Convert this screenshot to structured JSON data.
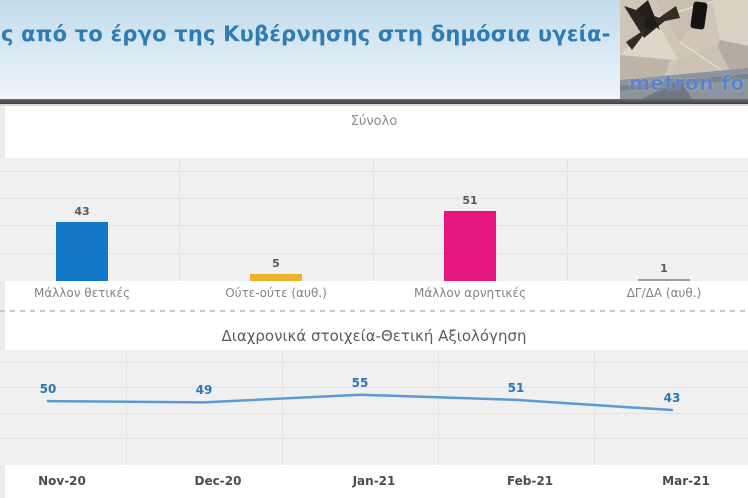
{
  "header": {
    "title": "ς από το έργο της Κυβέρνησης στη δημόσια υγεία-",
    "logo_text": "metron fo"
  },
  "colors": {
    "header_text": "#2e7cb4",
    "plot_bg": "#f0f0f0",
    "grid_line": "#e3e3e3",
    "value_label": "#595959",
    "category_label": "#848484",
    "month_label": "#4c4c4c",
    "section_title": "#8c8c8c",
    "section2_title": "#5c5c5c",
    "line_blue": "#5b9bd5",
    "line_value_label": "#2e75b6"
  },
  "chart_data": [
    {
      "type": "bar",
      "title": "Σύνολο",
      "categories": [
        "Μάλλον θετικές",
        "Ούτε-ούτε (αυθ.)",
        "Μάλλον αρνητικές",
        "ΔΓ/ΔΑ (αυθ.)"
      ],
      "values": [
        43,
        5,
        51,
        1
      ],
      "bar_colors": [
        "#1478c8",
        "#eeb12f",
        "#e5177e",
        "#9e9e9e"
      ],
      "ylim": [
        0,
        90
      ],
      "grid": true,
      "legend": "none"
    },
    {
      "type": "line",
      "title": "Διαχρονικά στοιχεία-Θετική Αξιολόγηση",
      "x": [
        "Nov-20",
        "Dec-20",
        "Jan-21",
        "Feb-21",
        "Mar-21"
      ],
      "values": [
        50,
        49,
        55,
        51,
        43
      ],
      "line_color": "#5b9bd5",
      "ylim": [
        0,
        90
      ],
      "grid": true,
      "legend": "none"
    }
  ]
}
